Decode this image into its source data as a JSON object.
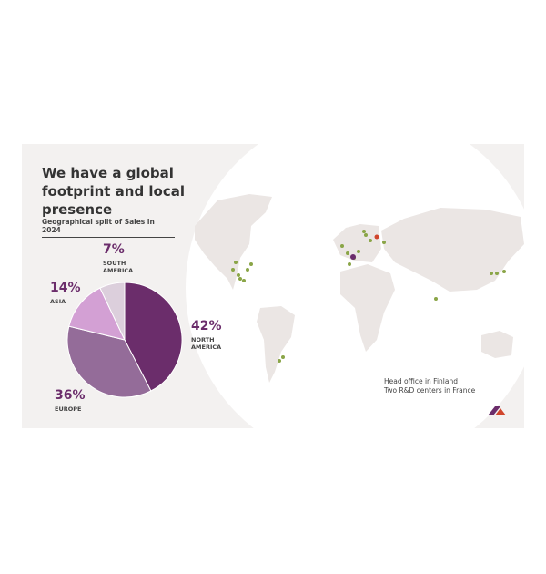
{
  "chart_data": {
    "type": "pie",
    "title": "We have a global footprint and local presence",
    "subtitle": "Geographical split of Sales in 2024",
    "categories": [
      "NORTH AMERICA",
      "EUROPE",
      "ASIA",
      "SOUTH AMERICA"
    ],
    "values": [
      42,
      36,
      14,
      7
    ],
    "value_labels": [
      "42%",
      "36%",
      "14%",
      "7%"
    ],
    "colors": [
      "#6b2d6b",
      "#946c99",
      "#d3a0d4",
      "#dccfdc"
    ],
    "notes": [
      "Head office in Finland",
      "Two R&D centers in France"
    ]
  }
}
